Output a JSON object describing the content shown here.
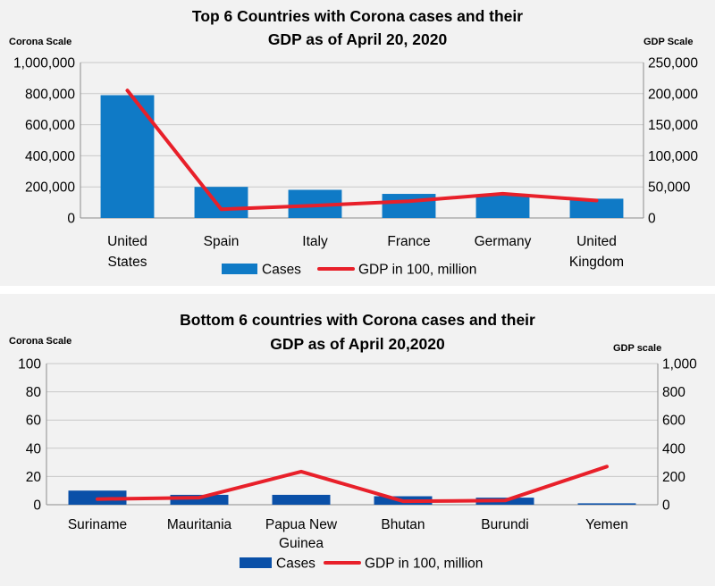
{
  "chart_data": [
    {
      "type": "bar",
      "title": [
        "Top 6 Countries with Corona cases and their",
        "GDP as of April 20, 2020"
      ],
      "left_axis_label": "Corona Scale",
      "right_axis_label": "GDP Scale",
      "categories": [
        [
          "United",
          "States"
        ],
        [
          "Spain"
        ],
        [
          "Italy"
        ],
        [
          "France"
        ],
        [
          "Germany"
        ],
        [
          "United",
          "Kingdom"
        ]
      ],
      "y_left_ticks": [
        "0",
        "200,000",
        "400,000",
        "600,000",
        "800,000",
        "1,000,000"
      ],
      "y_right_ticks": [
        "0",
        "50,000",
        "100,000",
        "150,000",
        "200,000",
        "250,000"
      ],
      "ylim_left": [
        0,
        1000000
      ],
      "ylim_right": [
        0,
        250000
      ],
      "grid": true,
      "legend_position": "bottom",
      "series": [
        {
          "name": "Cases",
          "kind": "bar",
          "axis": "left",
          "color": "#0f7ac6",
          "values": [
            790000,
            200000,
            181000,
            155000,
            146000,
            124000
          ]
        },
        {
          "name": "GDP in 100, million",
          "kind": "line",
          "axis": "right",
          "color": "#e8202a",
          "values": [
            205000,
            14000,
            20000,
            27000,
            39000,
            28000
          ]
        }
      ]
    },
    {
      "type": "bar",
      "title": [
        "Bottom 6 countries with Corona  cases and their",
        "GDP as of April 20,2020"
      ],
      "left_axis_label": "Corona  Scale",
      "right_axis_label": "GDP scale",
      "categories": [
        [
          "Suriname"
        ],
        [
          "Mauritania"
        ],
        [
          "Papua New",
          "Guinea"
        ],
        [
          "Bhutan"
        ],
        [
          "Burundi"
        ],
        [
          "Yemen"
        ]
      ],
      "y_left_ticks": [
        "0",
        "20",
        "40",
        "60",
        "80",
        "100"
      ],
      "y_right_ticks": [
        "0",
        "200",
        "400",
        "600",
        "800",
        "1,000"
      ],
      "ylim_left": [
        0,
        100
      ],
      "ylim_right": [
        0,
        1000
      ],
      "grid": true,
      "legend_position": "bottom",
      "series": [
        {
          "name": "Cases",
          "kind": "bar",
          "axis": "left",
          "color": "#0a50a8",
          "values": [
            10,
            7,
            7,
            6,
            5,
            1
          ]
        },
        {
          "name": "GDP in 100, million",
          "kind": "line",
          "axis": "right",
          "color": "#e8202a",
          "values": [
            40,
            50,
            235,
            25,
            30,
            270
          ]
        }
      ]
    }
  ]
}
